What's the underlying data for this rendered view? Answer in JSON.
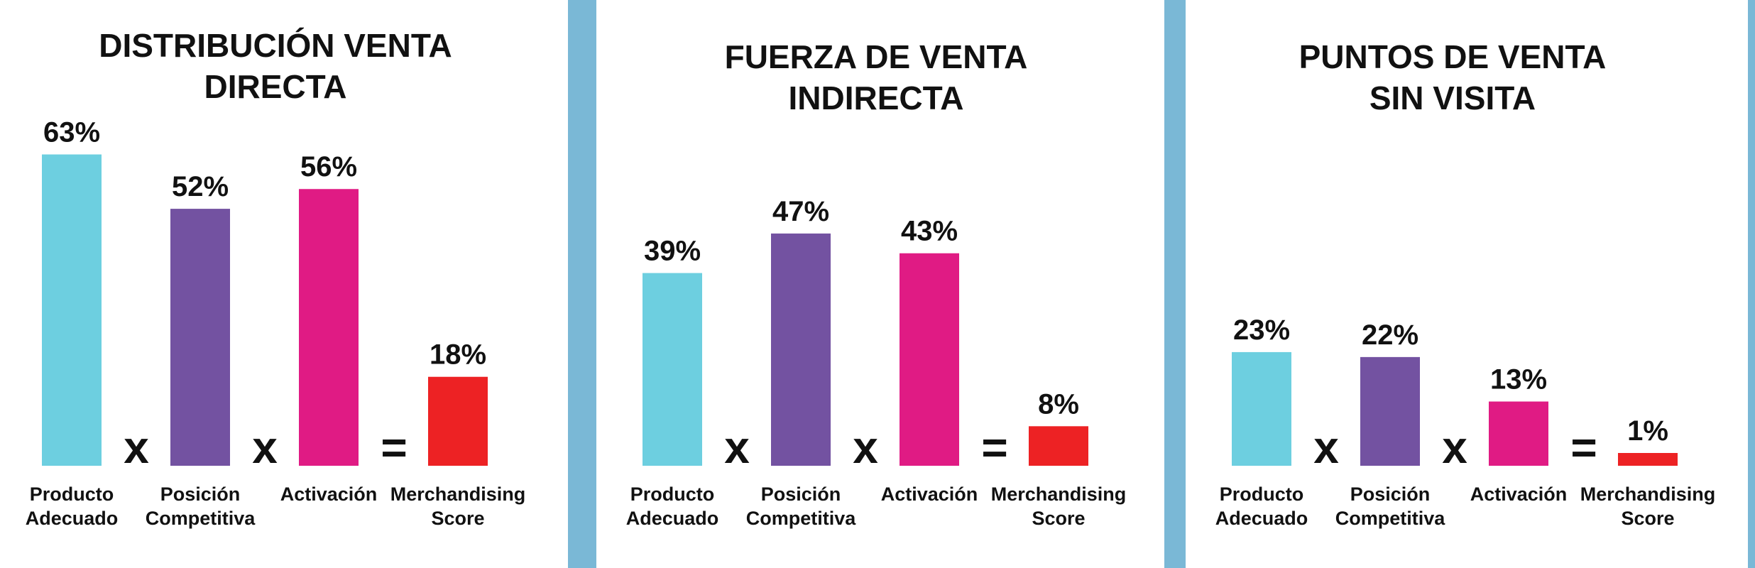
{
  "divider_color": "#7ab8d6",
  "series_colors": [
    "#6dcfe0",
    "#7352a1",
    "#e01b84",
    "#ed2224"
  ],
  "operators": [
    "x",
    "x",
    "="
  ],
  "chart_data": [
    {
      "type": "bar",
      "title_lines": [
        "DISTRIBUCIÓN VENTA",
        "DIRECTA"
      ],
      "categories": [
        [
          "Producto",
          "Adecuado"
        ],
        [
          "Posición",
          "Competitiva"
        ],
        [
          "Activación"
        ],
        [
          "Merchandising",
          "Score"
        ]
      ],
      "values": [
        63,
        52,
        56,
        18
      ],
      "value_labels": [
        "63%",
        "52%",
        "56%",
        "18%"
      ],
      "unit": "%",
      "ylim": [
        0,
        100
      ],
      "grid": false
    },
    {
      "type": "bar",
      "title_lines": [
        "FUERZA DE VENTA",
        "INDIRECTA"
      ],
      "categories": [
        [
          "Producto",
          "Adecuado"
        ],
        [
          "Posición",
          "Competitiva"
        ],
        [
          "Activación"
        ],
        [
          "Merchandising",
          "Score"
        ]
      ],
      "values": [
        39,
        47,
        43,
        8
      ],
      "value_labels": [
        "39%",
        "47%",
        "43%",
        "8%"
      ],
      "unit": "%",
      "ylim": [
        0,
        100
      ],
      "grid": false
    },
    {
      "type": "bar",
      "title_lines": [
        "PUNTOS DE VENTA",
        "SIN VISITA"
      ],
      "categories": [
        [
          "Producto",
          "Adecuado"
        ],
        [
          "Posición",
          "Competitiva"
        ],
        [
          "Activación"
        ],
        [
          "Merchandising",
          "Score"
        ]
      ],
      "values": [
        23,
        22,
        13,
        1
      ],
      "value_labels": [
        "23%",
        "22%",
        "13%",
        "1%"
      ],
      "unit": "%",
      "ylim": [
        0,
        100
      ],
      "grid": false
    }
  ]
}
